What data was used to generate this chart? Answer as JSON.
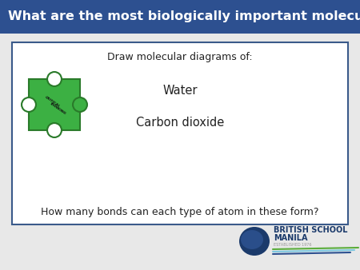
{
  "title": "What are the most biologically important molecules?",
  "title_bg_color": "#2D5090",
  "title_text_color": "#FFFFFF",
  "body_bg_color": "#E8E8E8",
  "box_bg_color": "#FFFFFF",
  "box_border_color": "#3A5A8A",
  "line1": "Draw molecular diagrams of:",
  "line2": "Water",
  "line3": "Carbon dioxide",
  "line4": "How many bonds can each type of atom in these form?",
  "puzzle_color": "#3CB043",
  "puzzle_border_color": "#2A7A2A",
  "bsm_text1": "BRITISH SCHOOL",
  "bsm_text2": "MANILA",
  "bsm_text3": "ESTABLISHED 1976",
  "bsm_blue": "#1B3A6B",
  "bsm_grey": "#7A7A7A"
}
